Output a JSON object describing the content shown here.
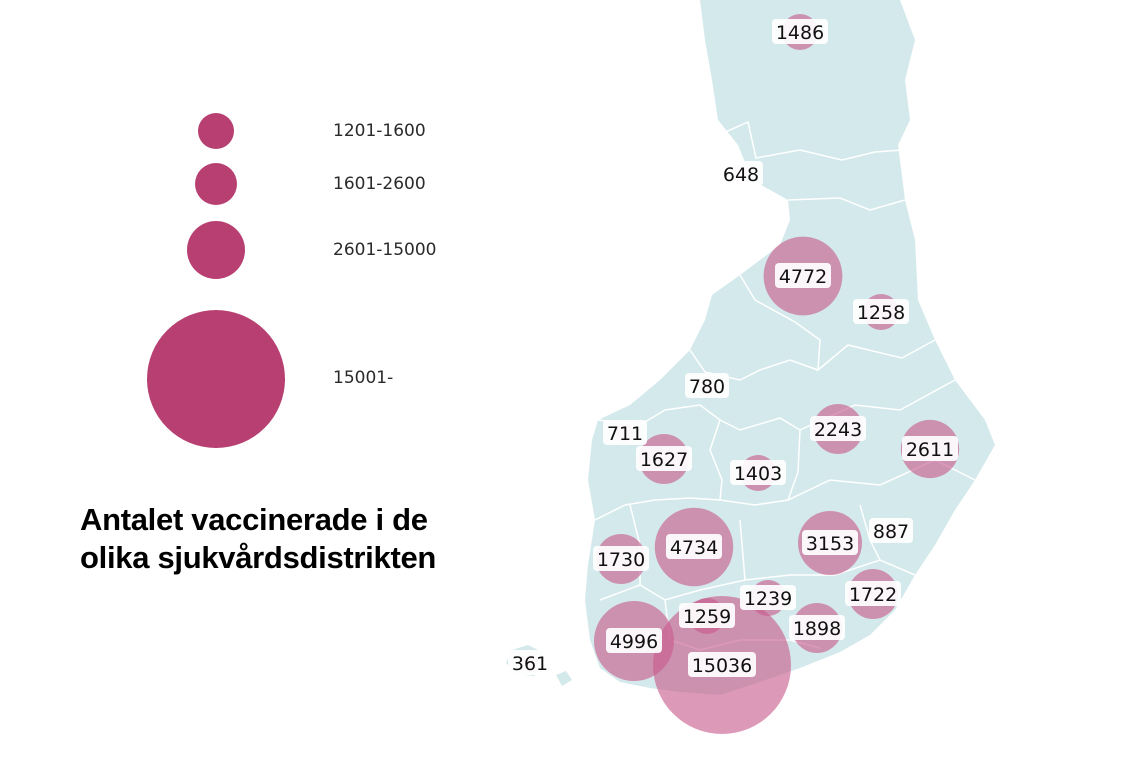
{
  "title": {
    "line1": "Antalet vaccinerade i de",
    "line2": "olika sjukvårdsdistrikten"
  },
  "legend": {
    "items": [
      {
        "range": "1201-1600",
        "label": "1201-1600"
      },
      {
        "range": "1601-2600",
        "label": "1601-2600"
      },
      {
        "range": "2601-15000",
        "label": "2601-15000"
      },
      {
        "range": "15001-",
        "label": "15001-"
      }
    ]
  },
  "colors": {
    "land": "#d4e9eb",
    "borders": "#ffffff",
    "legend_bubble": "#b73f71",
    "map_bubble": "#c85a8c",
    "label_bg": "#ffffff"
  },
  "chart_data": {
    "type": "bubble-map",
    "unit": "vaccinated",
    "districts": [
      {
        "value": 1486,
        "label": "1486"
      },
      {
        "value": 648,
        "label": "648"
      },
      {
        "value": 4772,
        "label": "4772"
      },
      {
        "value": 1258,
        "label": "1258"
      },
      {
        "value": 780,
        "label": "780"
      },
      {
        "value": 711,
        "label": "711"
      },
      {
        "value": 1627,
        "label": "1627"
      },
      {
        "value": 1403,
        "label": "1403"
      },
      {
        "value": 2243,
        "label": "2243"
      },
      {
        "value": 2611,
        "label": "2611"
      },
      {
        "value": 4734,
        "label": "4734"
      },
      {
        "value": 3153,
        "label": "3153"
      },
      {
        "value": 887,
        "label": "887"
      },
      {
        "value": 1730,
        "label": "1730"
      },
      {
        "value": 1239,
        "label": "1239"
      },
      {
        "value": 1722,
        "label": "1722"
      },
      {
        "value": 1259,
        "label": "1259"
      },
      {
        "value": 1898,
        "label": "1898"
      },
      {
        "value": 4996,
        "label": "4996"
      },
      {
        "value": 15036,
        "label": "15036"
      },
      {
        "value": 361,
        "label": "361"
      }
    ]
  }
}
